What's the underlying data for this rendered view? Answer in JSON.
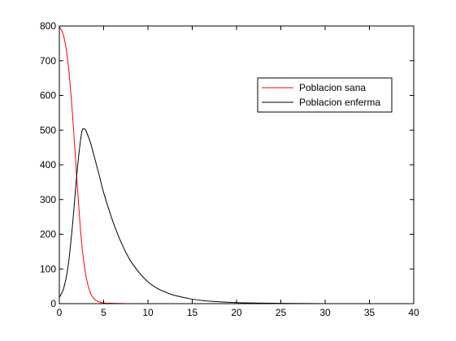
{
  "chart_data": {
    "type": "line",
    "title": "",
    "xlabel": "",
    "ylabel": "",
    "xlim": [
      0,
      40
    ],
    "ylim": [
      0,
      800
    ],
    "xticks": [
      0,
      5,
      10,
      15,
      20,
      25,
      30,
      35,
      40
    ],
    "yticks": [
      0,
      100,
      200,
      300,
      400,
      500,
      600,
      700,
      800
    ],
    "grid": false,
    "legend_position": "top-right",
    "series": [
      {
        "name": "Poblacion sana",
        "color": "#ff0000",
        "x": [
          0,
          0.5,
          1,
          1.5,
          2,
          2.5,
          3,
          3.5,
          4,
          4.5,
          5,
          6,
          8,
          10,
          15,
          20,
          25,
          30,
          35,
          40
        ],
        "y": [
          798,
          770,
          690,
          540,
          350,
          180,
          80,
          32,
          12,
          5,
          2,
          1,
          0,
          0,
          0,
          0,
          0,
          0,
          0,
          0
        ]
      },
      {
        "name": "Poblacion enferma",
        "color": "#000000",
        "x": [
          0,
          0.5,
          1,
          1.5,
          2,
          2.5,
          2.8,
          3,
          3.5,
          4,
          4.5,
          5,
          6,
          7,
          8,
          9,
          10,
          11,
          12,
          13,
          15,
          17,
          20,
          25,
          30,
          35,
          40
        ],
        "y": [
          18,
          45,
          110,
          230,
          380,
          490,
          503,
          498,
          465,
          418,
          370,
          320,
          240,
          175,
          125,
          90,
          63,
          45,
          33,
          24,
          13,
          7,
          3,
          1,
          0,
          0,
          0
        ]
      }
    ]
  }
}
